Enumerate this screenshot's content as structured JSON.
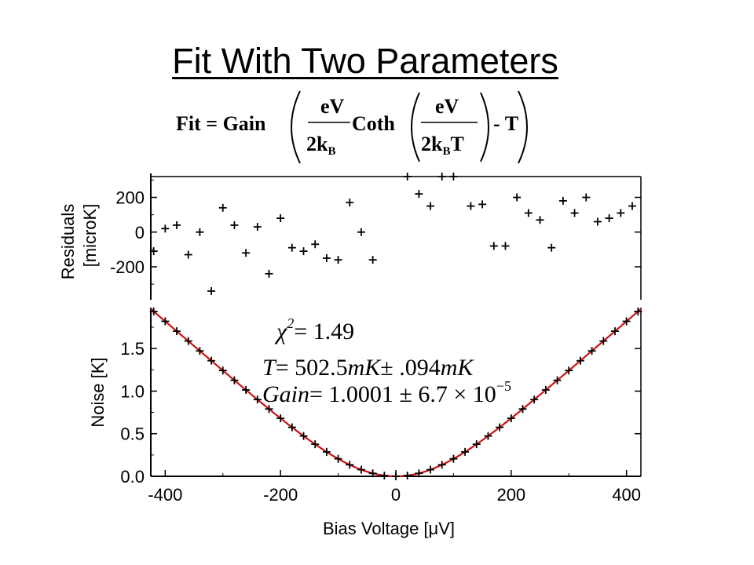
{
  "slide": {
    "title": "Fit With Two Parameters"
  },
  "formula": {
    "lhs": "Fit = Gain",
    "eV": "eV",
    "two_k": "2k",
    "k_sub": "B",
    "T": "T",
    "coth": "Coth",
    "minus_T": "- T"
  },
  "annotations": {
    "chi_symbol": "χ",
    "chi_exp": "2",
    "chi_value": "= 1.49",
    "t_lhs": "T",
    "t_value": "= 502.5",
    "t_unit1": "mK",
    "t_pm": "± .094",
    "t_unit2": "mK",
    "gain_lhs": "Gain",
    "gain_value": "= 1.0001 ± 6.7 × 10",
    "gain_exp": "−5"
  },
  "chart_data": [
    {
      "type": "scatter",
      "ylabel_line1": "Residuals",
      "ylabel_line2": "[microK]",
      "xlim": [
        -425,
        425
      ],
      "ylim": [
        -390,
        320
      ],
      "yticks": [
        200,
        0,
        -200
      ],
      "ytick_labels": [
        "200",
        "0",
        "-200"
      ],
      "series": [
        {
          "marker": "+",
          "points": [
            [
              -420,
              -110
            ],
            [
              -400,
              20
            ],
            [
              -380,
              40
            ],
            [
              -360,
              -130
            ],
            [
              -340,
              0
            ],
            [
              -320,
              -340
            ],
            [
              -300,
              140
            ],
            [
              -280,
              40
            ],
            [
              -260,
              -120
            ],
            [
              -240,
              30
            ],
            [
              -220,
              -240
            ],
            [
              -200,
              80
            ],
            [
              -180,
              -90
            ],
            [
              -160,
              -110
            ],
            [
              -140,
              -70
            ],
            [
              -120,
              -150
            ],
            [
              -100,
              -160
            ],
            [
              -80,
              170
            ],
            [
              -60,
              0
            ],
            [
              -40,
              -160
            ],
            [
              20,
              320
            ],
            [
              40,
              220
            ],
            [
              60,
              150
            ],
            [
              80,
              320
            ],
            [
              100,
              320
            ],
            [
              130,
              150
            ],
            [
              150,
              160
            ],
            [
              170,
              -80
            ],
            [
              190,
              -80
            ],
            [
              210,
              200
            ],
            [
              230,
              110
            ],
            [
              250,
              70
            ],
            [
              270,
              -90
            ],
            [
              290,
              180
            ],
            [
              310,
              110
            ],
            [
              330,
              200
            ],
            [
              350,
              60
            ],
            [
              370,
              80
            ],
            [
              390,
              110
            ],
            [
              410,
              150
            ]
          ]
        }
      ]
    },
    {
      "type": "line",
      "xlabel": "Bias Voltage [μV]",
      "ylabel": "Noise [K]",
      "xlim": [
        -425,
        425
      ],
      "ylim": [
        0,
        1.98
      ],
      "xticks": [
        -400,
        -200,
        0,
        200,
        400
      ],
      "xtick_labels": [
        "-400",
        "-200",
        "0",
        "200",
        "400"
      ],
      "yticks": [
        0,
        0.5,
        1.0,
        1.5
      ],
      "ytick_labels": [
        "0.0",
        "0.5",
        "1.0",
        "1.5"
      ],
      "fit_color": "#cc1111",
      "fit_T": 0.5025,
      "fit_gain": 1.0001,
      "data_x": [
        -420,
        -400,
        -380,
        -360,
        -340,
        -320,
        -300,
        -280,
        -260,
        -240,
        -220,
        -200,
        -180,
        -160,
        -140,
        -120,
        -100,
        -80,
        -60,
        -40,
        -20,
        0,
        20,
        40,
        60,
        80,
        100,
        120,
        140,
        160,
        180,
        200,
        220,
        240,
        260,
        280,
        300,
        320,
        340,
        360,
        380,
        400,
        420
      ]
    }
  ]
}
